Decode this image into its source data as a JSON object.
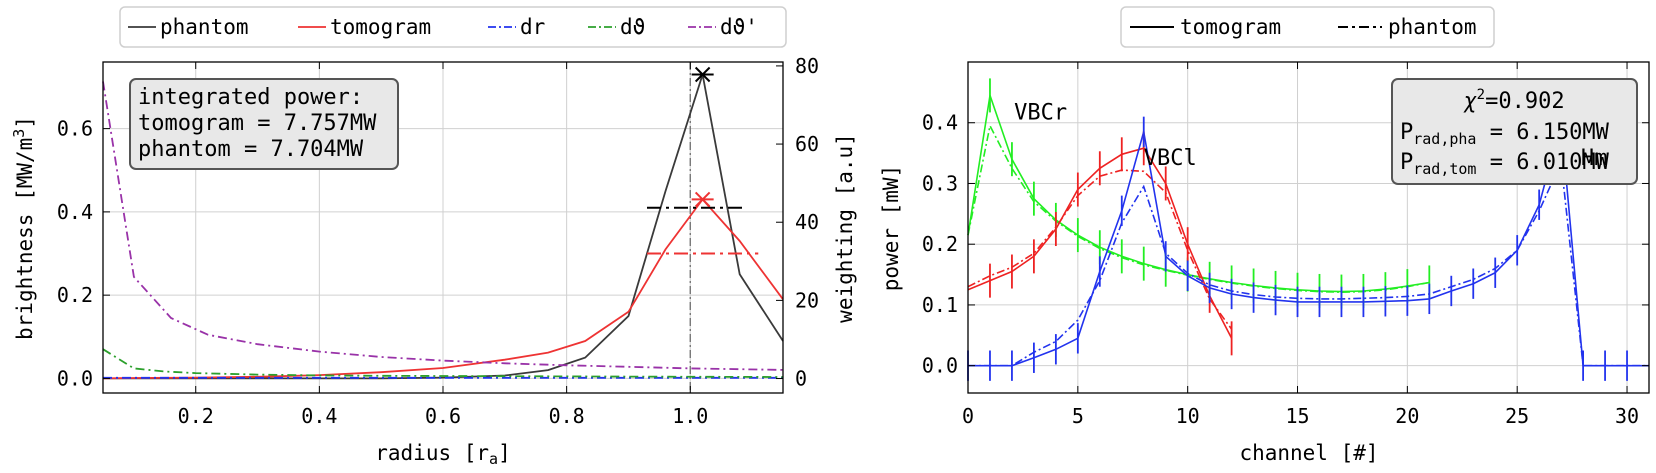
{
  "chart_data": [
    {
      "type": "line",
      "xlabel": "radius [r",
      "xlabel_sub": "a",
      "xlabel_end": "]",
      "ylabel": "brightness [MW/m",
      "ylabel_sup": "3",
      "ylabel_end": "]",
      "ylabel_right": "weighting [a.u]",
      "xlim": [
        0.05,
        1.15
      ],
      "ylim": [
        -0.035,
        0.76
      ],
      "ylim_right": [
        -3.7,
        81
      ],
      "xticks": [
        "0.2",
        "0.4",
        "0.6",
        "0.8",
        "1.0"
      ],
      "xtick_values": [
        0.2,
        0.4,
        0.6,
        0.8,
        1.0
      ],
      "yticks": [
        "0.0",
        "0.2",
        "0.4",
        "0.6"
      ],
      "ytick_values": [
        0.0,
        0.2,
        0.4,
        0.6
      ],
      "yticks_right": [
        "0",
        "20",
        "40",
        "60",
        "80"
      ],
      "ytick_right_values": [
        0,
        20,
        40,
        60,
        80
      ],
      "grid": true,
      "legend_position": "top, outside",
      "legend": [
        "phantom",
        "tomogram",
        "dr",
        "dϑ",
        "dϑ'"
      ],
      "annotation": [
        "integrated power:",
        "tomogram = 7.757MW",
        "phantom = 7.704MW"
      ],
      "vline_x": 1.0,
      "series": [
        {
          "name": "phantom",
          "axis": "left",
          "color": "#3a3a3a",
          "style": "solid",
          "x": [
            0.05,
            0.1,
            0.2,
            0.3,
            0.4,
            0.5,
            0.6,
            0.7,
            0.77,
            0.83,
            0.9,
            0.96,
            1.02,
            1.08,
            1.15
          ],
          "y": [
            0.0,
            0.0,
            0.0,
            0.0,
            0.0,
            0.0,
            0.002,
            0.007,
            0.02,
            0.05,
            0.15,
            0.45,
            0.73,
            0.25,
            0.09
          ]
        },
        {
          "name": "tomogram",
          "axis": "left",
          "color": "#ee3333",
          "style": "solid",
          "x": [
            0.05,
            0.1,
            0.2,
            0.3,
            0.4,
            0.5,
            0.6,
            0.7,
            0.77,
            0.83,
            0.9,
            0.96,
            1.02,
            1.08,
            1.15
          ],
          "y": [
            0.0,
            0.001,
            0.002,
            0.004,
            0.008,
            0.015,
            0.025,
            0.045,
            0.062,
            0.09,
            0.16,
            0.31,
            0.43,
            0.33,
            0.19
          ]
        },
        {
          "name": "dr",
          "axis": "right",
          "color": "#2233ee",
          "style": "dashdot",
          "x": [
            0.05,
            0.1,
            0.3,
            0.5,
            0.7,
            0.9,
            1.0,
            1.15
          ],
          "y": [
            0.2,
            0.2,
            0.2,
            0.2,
            0.2,
            0.2,
            0.2,
            0.2
          ]
        },
        {
          "name": "dϑ",
          "axis": "right",
          "color": "#2ca02c",
          "style": "dashdot",
          "x": [
            0.05,
            0.1,
            0.15,
            0.2,
            0.3,
            0.4,
            0.5,
            0.7,
            0.9,
            1.15
          ],
          "y": [
            7.5,
            2.6,
            1.8,
            1.4,
            1.0,
            0.8,
            0.7,
            0.6,
            0.5,
            0.4
          ]
        },
        {
          "name": "dϑ'",
          "axis": "right",
          "color": "#9932a8",
          "style": "dashdot",
          "x": [
            0.05,
            0.1,
            0.16,
            0.22,
            0.3,
            0.4,
            0.5,
            0.6,
            0.7,
            0.8,
            0.9,
            1.0,
            1.15
          ],
          "y": [
            76,
            26,
            15.5,
            11.2,
            8.8,
            6.9,
            5.5,
            4.6,
            3.9,
            3.4,
            3.0,
            2.6,
            2.2
          ]
        }
      ],
      "markers": [
        {
          "x": 1.02,
          "y": 0.73,
          "color": "#000000",
          "shape": "x"
        },
        {
          "x": 1.02,
          "y": 0.43,
          "color": "#ee3333",
          "shape": "x"
        }
      ],
      "hlines": [
        {
          "x0": 0.93,
          "x1": 1.085,
          "y": 0.41,
          "color": "#000000",
          "style": "dashdot"
        },
        {
          "x0": 0.93,
          "x1": 1.11,
          "y": 0.3,
          "color": "#ee3333",
          "style": "dashdot"
        }
      ]
    },
    {
      "type": "line",
      "xlabel": "channel [#]",
      "ylabel": "power [mW]",
      "xlim": [
        0,
        31
      ],
      "ylim": [
        -0.045,
        0.5
      ],
      "xticks": [
        "0",
        "5",
        "10",
        "15",
        "20",
        "25",
        "30"
      ],
      "xtick_values": [
        0,
        5,
        10,
        15,
        20,
        25,
        30
      ],
      "yticks": [
        "0.0",
        "0.1",
        "0.2",
        "0.3",
        "0.4"
      ],
      "ytick_values": [
        0.0,
        0.1,
        0.2,
        0.3,
        0.4
      ],
      "grid": true,
      "legend_position": "top, outside",
      "legend": [
        "tomogram",
        "phantom"
      ],
      "annotation": {
        "chi_prefix": "χ",
        "chi_sup": "2",
        "chi_value": "=0.902",
        "line2_p": "P",
        "line2_sub": "rad,pha",
        "line2_value": " = 6.150MW",
        "line3_p": "P",
        "line3_sub": "rad,tom",
        "line3_value": " = 6.010MW"
      },
      "labels": [
        {
          "text": "VBCr",
          "x": 2.1,
          "y": 0.405,
          "color": "#22ee22"
        },
        {
          "text": "VBCl",
          "x": 8.0,
          "y": 0.33,
          "color": "#ee2222"
        },
        {
          "text": "Hm",
          "x": 27.9,
          "y": 0.33,
          "color": "#2233ee"
        }
      ],
      "series": [
        {
          "name": "VBCr tomogram",
          "color": "#22ee22",
          "style": "solid",
          "x": [
            0,
            1,
            2,
            3,
            4,
            5,
            6,
            7,
            8,
            9,
            10,
            11,
            12,
            13,
            14,
            15,
            16,
            17,
            18,
            19,
            20,
            21
          ],
          "y": [
            0.215,
            0.445,
            0.34,
            0.275,
            0.24,
            0.215,
            0.195,
            0.18,
            0.168,
            0.158,
            0.15,
            0.143,
            0.137,
            0.132,
            0.128,
            0.125,
            0.123,
            0.122,
            0.123,
            0.126,
            0.131,
            0.137
          ]
        },
        {
          "name": "VBCr phantom",
          "color": "#22ee22",
          "style": "dashdot",
          "x": [
            0,
            1,
            2,
            3,
            4,
            5,
            6,
            7,
            8,
            9,
            10,
            11,
            12,
            13,
            14,
            15,
            16,
            17,
            18,
            19,
            20,
            21
          ],
          "y": [
            0.215,
            0.395,
            0.325,
            0.27,
            0.238,
            0.213,
            0.193,
            0.178,
            0.166,
            0.157,
            0.149,
            0.142,
            0.136,
            0.131,
            0.127,
            0.124,
            0.122,
            0.121,
            0.122,
            0.125,
            0.13,
            0.137
          ]
        },
        {
          "name": "VBCl tomogram",
          "color": "#ee2222",
          "style": "solid",
          "x": [
            0,
            1,
            2,
            3,
            4,
            5,
            6,
            7,
            8,
            9,
            10,
            11,
            12
          ],
          "y": [
            0.125,
            0.14,
            0.155,
            0.18,
            0.225,
            0.29,
            0.325,
            0.348,
            0.358,
            0.3,
            0.2,
            0.115,
            0.045
          ]
        },
        {
          "name": "VBCl phantom",
          "color": "#ee2222",
          "style": "dashdot",
          "x": [
            0,
            1,
            2,
            3,
            4,
            5,
            6,
            7,
            8,
            9,
            10,
            11,
            12
          ],
          "y": [
            0.13,
            0.148,
            0.162,
            0.185,
            0.228,
            0.28,
            0.312,
            0.322,
            0.32,
            0.285,
            0.19,
            0.11,
            0.06
          ]
        },
        {
          "name": "Hm tomogram",
          "color": "#2233ee",
          "style": "solid",
          "x": [
            0,
            1,
            2,
            3,
            4,
            5,
            6,
            7,
            8,
            9,
            10,
            11,
            12,
            13,
            14,
            15,
            16,
            17,
            18,
            19,
            20,
            21,
            22,
            23,
            24,
            25,
            26,
            27,
            28,
            29,
            30,
            31
          ],
          "y": [
            0.0,
            0.0,
            0.0,
            0.013,
            0.027,
            0.045,
            0.155,
            0.255,
            0.385,
            0.18,
            0.148,
            0.128,
            0.118,
            0.112,
            0.108,
            0.105,
            0.105,
            0.105,
            0.105,
            0.106,
            0.107,
            0.11,
            0.123,
            0.135,
            0.153,
            0.19,
            0.265,
            0.4,
            0.0,
            0.0,
            0.0,
            0.0
          ]
        },
        {
          "name": "Hm phantom",
          "color": "#2233ee",
          "style": "dashdot",
          "x": [
            0,
            1,
            2,
            3,
            4,
            5,
            6,
            7,
            8,
            9,
            10,
            11,
            12,
            13,
            14,
            15,
            16,
            17,
            18,
            19,
            20,
            21,
            22,
            23,
            24,
            25,
            26,
            27,
            28,
            29,
            30,
            31
          ],
          "y": [
            0.0,
            0.0,
            0.0,
            0.022,
            0.04,
            0.075,
            0.14,
            0.235,
            0.295,
            0.185,
            0.152,
            0.133,
            0.123,
            0.117,
            0.113,
            0.111,
            0.11,
            0.11,
            0.111,
            0.112,
            0.114,
            0.118,
            0.13,
            0.142,
            0.16,
            0.19,
            0.255,
            0.335,
            0.0,
            0.0,
            0.0,
            0.0
          ]
        }
      ],
      "errorbars": [
        {
          "color": "#22ee22",
          "x": [
            1,
            2,
            3,
            4,
            5,
            6,
            7,
            8,
            9,
            10,
            11,
            12,
            13,
            14,
            15,
            16,
            17,
            18,
            19,
            20,
            21
          ],
          "half": 0.028
        },
        {
          "color": "#ee2222",
          "x": [
            1,
            2,
            3,
            4,
            5,
            6,
            7,
            8,
            9,
            10,
            11,
            12
          ],
          "half": 0.028
        },
        {
          "color": "#2233ee",
          "x": [
            0,
            1,
            2,
            3,
            4,
            5,
            6,
            7,
            8,
            9,
            10,
            11,
            12,
            13,
            14,
            15,
            16,
            17,
            18,
            19,
            20,
            21,
            22,
            23,
            24,
            25,
            26,
            27,
            28,
            29,
            30
          ],
          "half": 0.025
        }
      ]
    }
  ]
}
